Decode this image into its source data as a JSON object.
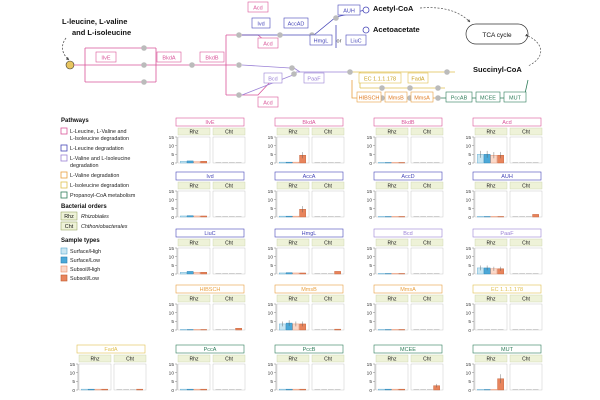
{
  "pathway": {
    "source": [
      "L-leucine, L-valine",
      "and L-isoleucine"
    ],
    "acetyl": "Acetyl-CoA",
    "acetoacetate": "Acetoacetate",
    "tca": "TCA cycle",
    "succinyl": "Succinyl-CoA",
    "or_word": "or",
    "enzymes": {
      "IlvE": "IlvE",
      "BkdA": "BkdA",
      "BkdB": "BkdB",
      "Acd1": "Acd",
      "Acd2": "Acd",
      "Acd3": "Acd",
      "Ivd": "Ivd",
      "AccAD": "AccAD",
      "AUH": "AUH",
      "HmgL": "HmgL",
      "LiuC": "LiuC",
      "Bcd": "Bcd",
      "PaaF": "PaaF",
      "EC": "EC 1.1.1.178",
      "FadA": "FadA",
      "HIBSCH": "HIBSCH",
      "MmsB": "MmsB",
      "MmsA": "MmsA",
      "PccAB": "PccAB",
      "MCEE": "MCEE",
      "MUT": "MUT"
    }
  },
  "legend": {
    "pathways_title": "Pathways",
    "pathways": [
      {
        "lines": [
          "L-Leucine, L-Valine and",
          "L-Isoleucine degradation"
        ],
        "color": "#d9559a"
      },
      {
        "lines": [
          "L-Leucine degradation"
        ],
        "color": "#4747b8"
      },
      {
        "lines": [
          "L-Valine and L-Isoleucine",
          "degradation"
        ],
        "color": "#9b82d6"
      },
      {
        "lines": [
          "L-Valine degradation"
        ],
        "color": "#e8a040"
      },
      {
        "lines": [
          "L-Isoleucine degradation"
        ],
        "color": "#e0c050"
      },
      {
        "lines": [
          "Propanoyl-CoA metabolism"
        ],
        "color": "#2f7d5a"
      }
    ],
    "orders_title": "Bacterial orders",
    "orders": [
      {
        "code": "Rhz",
        "name": "Rhizobiales"
      },
      {
        "code": "Cht",
        "name": "Chthoniobacterales"
      }
    ],
    "samples_title": "Sample types",
    "samples": [
      {
        "label": "Surface/High",
        "color": "#c9e6f2",
        "stroke": "#5aa8cf"
      },
      {
        "label": "Surface/Low",
        "color": "#4aa8d8",
        "stroke": "#2a7fb0"
      },
      {
        "label": "Subsoil/High",
        "color": "#fbd8c8",
        "stroke": "#e88a64"
      },
      {
        "label": "Subsoil/Low",
        "color": "#e8845c",
        "stroke": "#c05a30"
      }
    ]
  },
  "chart_data": {
    "type": "bar",
    "facet_labels": [
      "Rhz",
      "Cht"
    ],
    "sample_types": [
      "Surface/High",
      "Surface/Low",
      "Subsoil/High",
      "Subsoil/Low"
    ],
    "ylim": [
      0,
      15
    ],
    "yticks": [
      0,
      5,
      10,
      15
    ],
    "panels": [
      {
        "name": "IlvE",
        "color": "#d9559a",
        "rhz": [
          1,
          1.2,
          0.8,
          1
        ],
        "cht": [
          0,
          0,
          0,
          0
        ]
      },
      {
        "name": "BkdA",
        "color": "#d9559a",
        "rhz": [
          0.5,
          0.5,
          0.5,
          4.5
        ],
        "cht": [
          0,
          0,
          0,
          0
        ]
      },
      {
        "name": "BkdB",
        "color": "#d9559a",
        "rhz": [
          0.3,
          0.3,
          0.3,
          0.3
        ],
        "cht": [
          0,
          0,
          0,
          0
        ]
      },
      {
        "name": "Acd",
        "color": "#d9559a",
        "rhz": [
          5,
          5,
          4.5,
          4.5
        ],
        "cht": [
          0,
          0,
          0,
          0
        ]
      },
      {
        "name": "Ivd",
        "color": "#4747b8",
        "rhz": [
          0.6,
          0.8,
          0.6,
          0.6
        ],
        "cht": [
          0,
          0,
          0,
          0
        ]
      },
      {
        "name": "AccA",
        "color": "#4747b8",
        "rhz": [
          0.5,
          0.5,
          0.5,
          4.5
        ],
        "cht": [
          0,
          0,
          0,
          0
        ]
      },
      {
        "name": "AccD",
        "color": "#4747b8",
        "rhz": [
          0.3,
          0.3,
          0.3,
          0.3
        ],
        "cht": [
          0,
          0,
          0,
          0
        ]
      },
      {
        "name": "AUH",
        "color": "#4747b8",
        "rhz": [
          0.3,
          0.3,
          0.3,
          0.3
        ],
        "cht": [
          0,
          0,
          0,
          1.5
        ]
      },
      {
        "name": "LiuC",
        "color": "#4747b8",
        "rhz": [
          1,
          1.5,
          1,
          1
        ],
        "cht": [
          0,
          0,
          0,
          0
        ]
      },
      {
        "name": "HmgL",
        "color": "#4747b8",
        "rhz": [
          0.6,
          0.8,
          0.6,
          0.6
        ],
        "cht": [
          0,
          0,
          0,
          1.5
        ]
      },
      {
        "name": "Bcd",
        "color": "#9b82d6",
        "rhz": [
          0.3,
          0.3,
          0.3,
          0.3
        ],
        "cht": [
          0,
          0,
          0,
          0
        ]
      },
      {
        "name": "PaaF",
        "color": "#9b82d6",
        "rhz": [
          3.5,
          3.5,
          3,
          3
        ],
        "cht": [
          0,
          0,
          0,
          0
        ]
      },
      {
        "name": "HIBSCH",
        "color": "#e8a040",
        "rhz": [
          0.3,
          0.3,
          0.3,
          0.3
        ],
        "cht": [
          0,
          0,
          0,
          1
        ]
      },
      {
        "name": "MmsB",
        "color": "#e8a040",
        "rhz": [
          3.5,
          4,
          3.5,
          3.5
        ],
        "cht": [
          0,
          0,
          0,
          0.5
        ]
      },
      {
        "name": "MmsA",
        "color": "#e8a040",
        "rhz": [
          0.3,
          0.3,
          0.3,
          0.3
        ],
        "cht": [
          0,
          0,
          0,
          0
        ]
      },
      {
        "name": "EC 1.1.1.178",
        "color": "#e0c050",
        "rhz": [
          0,
          0,
          0,
          0
        ],
        "cht": [
          0,
          0,
          0,
          0
        ]
      },
      {
        "name": "FadA",
        "color": "#e0c050",
        "rhz": [
          0.5,
          0.5,
          0.5,
          0.5
        ],
        "cht": [
          0,
          0,
          0,
          0.5
        ]
      },
      {
        "name": "PccA",
        "color": "#2f7d5a",
        "rhz": [
          0.5,
          0.5,
          0.5,
          0.5
        ],
        "cht": [
          0,
          0,
          0,
          0
        ]
      },
      {
        "name": "PccB",
        "color": "#2f7d5a",
        "rhz": [
          0.5,
          0.5,
          0.5,
          0.5
        ],
        "cht": [
          0,
          0,
          0,
          0
        ]
      },
      {
        "name": "MCEE",
        "color": "#2f7d5a",
        "rhz": [
          0.5,
          0.5,
          0.5,
          0.5
        ],
        "cht": [
          0,
          0,
          0,
          2.5
        ]
      },
      {
        "name": "MUT",
        "color": "#2f7d5a",
        "rhz": [
          0.3,
          0.3,
          0.3,
          6.5
        ],
        "cht": [
          0,
          0,
          0,
          0
        ]
      }
    ]
  }
}
